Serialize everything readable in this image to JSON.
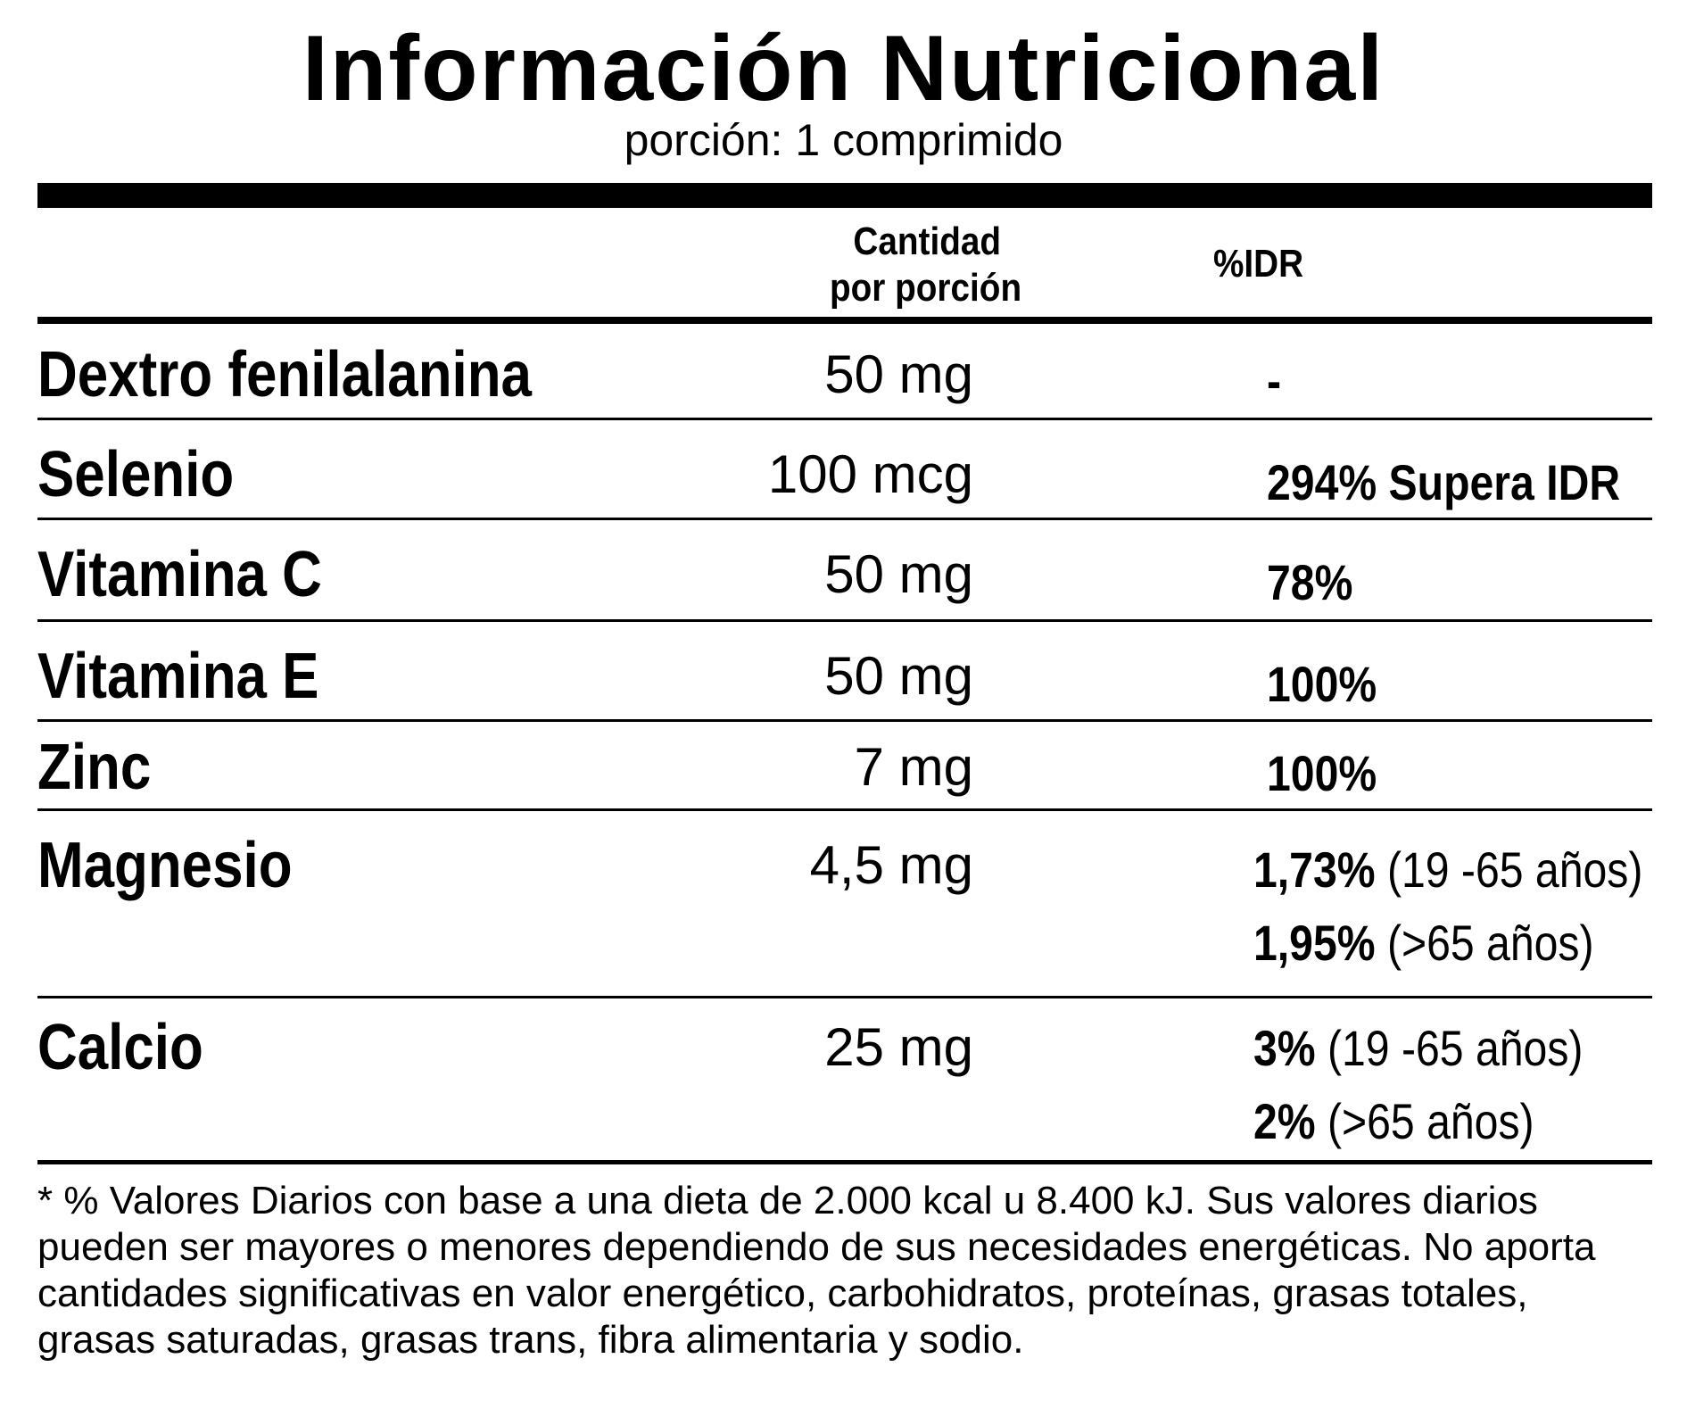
{
  "title": "Información Nutricional",
  "serving": "porción: 1 comprimido",
  "columns": {
    "amount_line1": "Cantidad",
    "amount_line2": "por porción",
    "idr": "%IDR"
  },
  "rows": [
    {
      "name": "Dextro fenilalanina",
      "amount": "50 mg",
      "idr": [
        {
          "bold": "-",
          "note": ""
        }
      ]
    },
    {
      "name": "Selenio",
      "amount": "100 mcg",
      "idr": [
        {
          "bold": "294% Supera IDR",
          "note": ""
        }
      ]
    },
    {
      "name": "Vitamina C",
      "amount": "50 mg",
      "idr": [
        {
          "bold": "78%",
          "note": ""
        }
      ]
    },
    {
      "name": "Vitamina E",
      "amount": "50 mg",
      "idr": [
        {
          "bold": "100%",
          "note": ""
        }
      ]
    },
    {
      "name": "Zinc",
      "amount": "7 mg",
      "idr": [
        {
          "bold": "100%",
          "note": ""
        }
      ]
    },
    {
      "name": "Magnesio",
      "amount": "4,5 mg",
      "idr": [
        {
          "bold": "1,73%",
          "note": " (19 -65 años)"
        },
        {
          "bold": "1,95%",
          "note": " (>65 años)"
        }
      ]
    },
    {
      "name": "Calcio",
      "amount": "25 mg",
      "idr": [
        {
          "bold": "3%",
          "note": " (19 -65 años)"
        },
        {
          "bold": "2%",
          "note": " (>65 años)"
        }
      ]
    }
  ],
  "footnote": "* % Valores Diarios con base a una dieta de 2.000 kcal u 8.400 kJ. Sus valores diarios pueden ser mayores o menores dependiendo de sus necesidades energéticas. No aporta cantidades significativas en  valor energético, carbohidratos, proteínas, grasas  totales, grasas saturadas, grasas trans, fibra alimentaria y sodio."
}
